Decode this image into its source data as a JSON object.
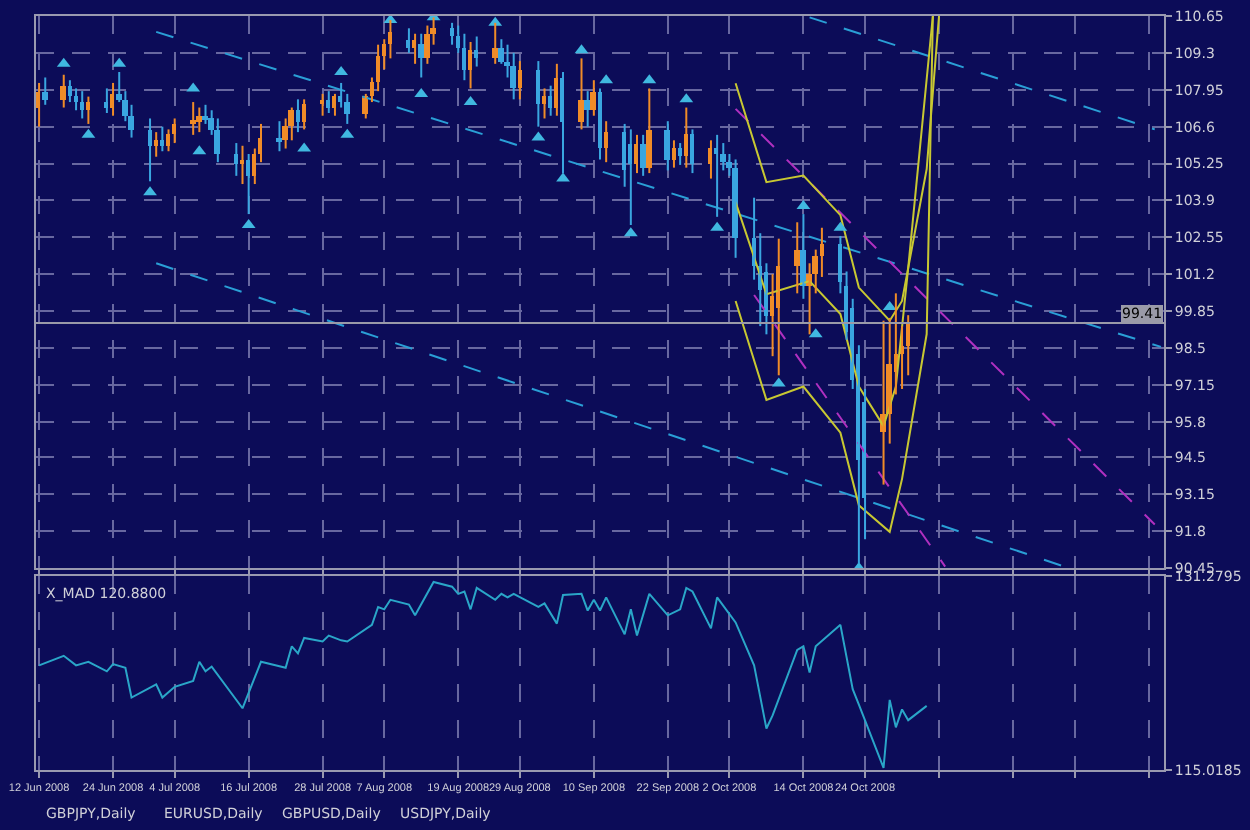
{
  "chart_data": [
    {
      "type": "candlestick",
      "x": [
        "2008-06-12",
        "2008-06-13",
        "2008-06-16",
        "2008-06-17",
        "2008-06-18",
        "2008-06-19",
        "2008-06-20",
        "2008-06-23",
        "2008-06-24",
        "2008-06-25",
        "2008-06-26",
        "2008-06-27",
        "2008-06-30",
        "2008-07-01",
        "2008-07-02",
        "2008-07-03",
        "2008-07-04",
        "2008-07-07",
        "2008-07-08",
        "2008-07-09",
        "2008-07-10",
        "2008-07-11",
        "2008-07-14",
        "2008-07-15",
        "2008-07-16",
        "2008-07-17",
        "2008-07-18",
        "2008-07-21",
        "2008-07-22",
        "2008-07-23",
        "2008-07-24",
        "2008-07-25",
        "2008-07-28",
        "2008-07-29",
        "2008-07-30",
        "2008-07-31",
        "2008-08-01",
        "2008-08-04",
        "2008-08-05",
        "2008-08-06",
        "2008-08-07",
        "2008-08-08",
        "2008-08-11",
        "2008-08-12",
        "2008-08-13",
        "2008-08-14",
        "2008-08-15",
        "2008-08-18",
        "2008-08-19",
        "2008-08-20",
        "2008-08-21",
        "2008-08-22",
        "2008-08-25",
        "2008-08-26",
        "2008-08-27",
        "2008-08-28",
        "2008-08-29",
        "2008-09-01",
        "2008-09-02",
        "2008-09-03",
        "2008-09-04",
        "2008-09-05",
        "2008-09-08",
        "2008-09-09",
        "2008-09-10",
        "2008-09-11",
        "2008-09-12",
        "2008-09-15",
        "2008-09-16",
        "2008-09-17",
        "2008-09-18",
        "2008-09-19",
        "2008-09-22",
        "2008-09-23",
        "2008-09-24",
        "2008-09-25",
        "2008-09-26",
        "2008-09-29",
        "2008-09-30",
        "2008-10-01",
        "2008-10-02",
        "2008-10-03",
        "2008-10-06",
        "2008-10-07",
        "2008-10-08",
        "2008-10-09",
        "2008-10-10",
        "2008-10-13",
        "2008-10-14",
        "2008-10-15",
        "2008-10-16",
        "2008-10-17",
        "2008-10-20",
        "2008-10-21",
        "2008-10-22",
        "2008-10-23",
        "2008-10-24",
        "2008-10-27",
        "2008-10-28",
        "2008-10-29",
        "2008-10-30",
        "2008-10-31"
      ],
      "ohlc": [
        [
          107.3,
          108.2,
          106.6,
          107.9
        ],
        [
          107.9,
          108.4,
          107.4,
          107.6
        ],
        [
          107.6,
          108.5,
          107.3,
          108.1
        ],
        [
          108.1,
          108.3,
          107.5,
          107.7
        ],
        [
          107.7,
          108.0,
          107.2,
          107.5
        ],
        [
          107.5,
          107.9,
          106.9,
          107.2
        ],
        [
          107.2,
          107.7,
          106.7,
          107.5
        ],
        [
          107.5,
          108.0,
          107.1,
          107.3
        ],
        [
          107.3,
          108.2,
          107.0,
          107.8
        ],
        [
          107.8,
          108.6,
          107.5,
          107.6
        ],
        [
          107.6,
          107.9,
          106.8,
          107.0
        ],
        [
          107.0,
          107.4,
          106.2,
          106.5
        ],
        [
          106.5,
          106.9,
          104.6,
          105.9
        ],
        [
          105.9,
          106.4,
          105.5,
          106.1
        ],
        [
          106.1,
          106.6,
          105.7,
          105.9
        ],
        [
          105.9,
          106.5,
          105.7,
          106.3
        ],
        [
          106.3,
          106.9,
          106.0,
          106.7
        ],
        [
          106.7,
          107.5,
          106.3,
          106.8
        ],
        [
          106.8,
          107.3,
          106.4,
          107.0
        ],
        [
          107.0,
          107.4,
          106.7,
          106.9
        ],
        [
          106.9,
          107.2,
          106.3,
          106.5
        ],
        [
          106.5,
          106.9,
          105.3,
          105.6
        ],
        [
          105.6,
          106.0,
          104.8,
          105.2
        ],
        [
          105.2,
          105.9,
          104.5,
          105.4
        ],
        [
          105.4,
          105.6,
          103.4,
          104.8
        ],
        [
          104.8,
          105.8,
          104.5,
          105.6
        ],
        [
          105.6,
          106.7,
          105.3,
          106.2
        ],
        [
          106.2,
          106.8,
          105.7,
          106.1
        ],
        [
          106.1,
          106.9,
          105.8,
          106.6
        ],
        [
          106.6,
          107.3,
          106.1,
          107.2
        ],
        [
          107.2,
          107.6,
          106.4,
          106.8
        ],
        [
          106.8,
          107.6,
          106.5,
          107.4
        ],
        [
          107.4,
          107.8,
          107.0,
          107.6
        ],
        [
          107.6,
          107.9,
          107.1,
          107.3
        ],
        [
          107.3,
          107.8,
          107.0,
          107.7
        ],
        [
          107.7,
          108.2,
          107.3,
          107.5
        ],
        [
          107.5,
          107.8,
          106.7,
          107.1
        ],
        [
          107.1,
          107.8,
          106.9,
          107.7
        ],
        [
          107.7,
          108.4,
          107.5,
          108.2
        ],
        [
          108.2,
          109.6,
          107.9,
          109.2
        ],
        [
          109.2,
          109.8,
          108.7,
          109.6
        ],
        [
          109.6,
          110.5,
          109.1,
          110.1
        ],
        [
          109.8,
          110.2,
          109.3,
          109.5
        ],
        [
          109.5,
          110.0,
          108.9,
          109.8
        ],
        [
          109.6,
          110.0,
          108.4,
          109.1
        ],
        [
          109.1,
          110.3,
          108.9,
          110.0
        ],
        [
          110.0,
          110.6,
          109.6,
          110.2
        ],
        [
          110.2,
          110.4,
          109.6,
          109.9
        ],
        [
          109.9,
          110.3,
          109.3,
          109.5
        ],
        [
          109.5,
          110.0,
          108.3,
          108.7
        ],
        [
          108.7,
          109.7,
          108.0,
          109.4
        ],
        [
          109.4,
          109.9,
          108.8,
          109.1
        ],
        [
          109.1,
          110.4,
          108.9,
          109.5
        ],
        [
          109.5,
          109.8,
          108.9,
          109.0
        ],
        [
          109.0,
          109.6,
          108.4,
          108.8
        ],
        [
          108.8,
          109.3,
          107.6,
          108.0
        ],
        [
          108.0,
          109.0,
          107.6,
          108.7
        ],
        [
          108.7,
          109.0,
          106.6,
          107.4
        ],
        [
          107.4,
          108.0,
          106.9,
          107.7
        ],
        [
          107.7,
          108.1,
          107.0,
          107.3
        ],
        [
          107.3,
          108.9,
          107.0,
          108.4
        ],
        [
          108.4,
          108.6,
          104.9,
          106.8
        ],
        [
          106.8,
          109.1,
          106.5,
          107.6
        ],
        [
          107.6,
          107.9,
          106.6,
          107.2
        ],
        [
          107.2,
          108.3,
          107.0,
          107.9
        ],
        [
          107.9,
          108.0,
          105.4,
          105.8
        ],
        [
          105.8,
          106.8,
          105.3,
          106.4
        ],
        [
          106.4,
          106.7,
          104.4,
          105.0
        ],
        [
          106.0,
          106.5,
          103.0,
          105.2
        ],
        [
          105.2,
          106.3,
          104.9,
          106.0
        ],
        [
          106.0,
          106.3,
          104.8,
          105.1
        ],
        [
          105.1,
          108.0,
          104.9,
          106.5
        ],
        [
          106.5,
          106.8,
          105.0,
          105.4
        ],
        [
          105.4,
          106.1,
          105.1,
          105.8
        ],
        [
          105.8,
          106.0,
          105.2,
          105.5
        ],
        [
          105.5,
          107.3,
          105.1,
          106.3
        ],
        [
          106.3,
          106.5,
          104.9,
          105.2
        ],
        [
          105.2,
          106.1,
          104.7,
          105.8
        ],
        [
          105.8,
          106.3,
          103.3,
          105.6
        ],
        [
          105.6,
          106.0,
          105.0,
          105.3
        ],
        [
          105.3,
          105.6,
          104.8,
          105.1
        ],
        [
          105.1,
          105.4,
          101.8,
          102.5
        ],
        [
          102.5,
          104.0,
          101.0,
          101.5
        ],
        [
          101.5,
          102.7,
          99.3,
          100.6
        ],
        [
          101.3,
          101.6,
          99.0,
          99.7
        ],
        [
          99.7,
          101.2,
          98.2,
          100.4
        ],
        [
          100.0,
          102.5,
          97.5,
          101.5
        ],
        [
          101.5,
          103.1,
          100.5,
          102.1
        ],
        [
          102.1,
          103.4,
          100.3,
          100.8
        ],
        [
          100.8,
          101.6,
          99.0,
          101.2
        ],
        [
          101.2,
          102.1,
          100.5,
          101.9
        ],
        [
          101.9,
          102.9,
          101.1,
          102.3
        ],
        [
          102.3,
          102.6,
          100.5,
          100.9
        ],
        [
          100.8,
          101.3,
          98.8,
          99.1
        ],
        [
          100.0,
          100.3,
          97.0,
          97.3
        ],
        [
          98.3,
          98.6,
          90.6,
          94.4
        ],
        [
          96.5,
          97.0,
          91.5,
          93.0
        ],
        [
          95.4,
          99.5,
          93.5,
          96.1
        ],
        [
          96.1,
          99.6,
          95.0,
          97.9
        ],
        [
          97.6,
          100.5,
          96.8,
          98.3
        ],
        [
          98.3,
          99.3,
          97.0,
          98.6
        ],
        [
          98.6,
          99.7,
          97.5,
          99.4
        ]
      ],
      "colors": [
        "#f08c28",
        "#3aa6e0",
        "#f08c28",
        "#3aa6e0",
        "#3aa6e0",
        "#3aa6e0",
        "#f08c28",
        "#3aa6e0",
        "#f08c28",
        "#3aa6e0",
        "#3aa6e0",
        "#3aa6e0",
        "#3aa6e0",
        "#f08c28",
        "#3aa6e0",
        "#f08c28",
        "#f08c28",
        "#f08c28",
        "#f08c28",
        "#3aa6e0",
        "#3aa6e0",
        "#3aa6e0",
        "#3aa6e0",
        "#f08c28",
        "#3aa6e0",
        "#f08c28",
        "#f08c28",
        "#3aa6e0",
        "#f08c28",
        "#f08c28",
        "#3aa6e0",
        "#f08c28",
        "#f08c28",
        "#3aa6e0",
        "#f08c28",
        "#3aa6e0",
        "#3aa6e0",
        "#f08c28",
        "#f08c28",
        "#f08c28",
        "#f08c28",
        "#f08c28",
        "#3aa6e0",
        "#f08c28",
        "#3aa6e0",
        "#f08c28",
        "#f08c28",
        "#3aa6e0",
        "#3aa6e0",
        "#3aa6e0",
        "#f08c28",
        "#3aa6e0",
        "#f08c28",
        "#3aa6e0",
        "#3aa6e0",
        "#3aa6e0",
        "#f08c28",
        "#3aa6e0",
        "#f08c28",
        "#3aa6e0",
        "#f08c28",
        "#3aa6e0",
        "#f08c28",
        "#3aa6e0",
        "#f08c28",
        "#3aa6e0",
        "#f08c28",
        "#3aa6e0",
        "#3aa6e0",
        "#f08c28",
        "#3aa6e0",
        "#f08c28",
        "#3aa6e0",
        "#f08c28",
        "#3aa6e0",
        "#f08c28",
        "#3aa6e0",
        "#f08c28",
        "#3aa6e0",
        "#3aa6e0",
        "#3aa6e0",
        "#3aa6e0",
        "#3aa6e0",
        "#3aa6e0",
        "#3aa6e0",
        "#f08c28",
        "#f08c28",
        "#f08c28",
        "#3aa6e0",
        "#f08c28",
        "#f08c28",
        "#f08c28",
        "#3aa6e0",
        "#3aa6e0",
        "#3aa6e0",
        "#3aa6e0",
        "#3aa6e0",
        "#f08c28",
        "#f08c28",
        "#f08c28",
        "#f08c28",
        "#f08c28"
      ],
      "series": [
        {
          "type": "line",
          "color": "#2a9fd6",
          "line_style": "dashed",
          "x": [
            "2008-10-15",
            "2008-12-10"
          ],
          "values": [
            110.6,
            106.5
          ]
        },
        {
          "type": "line",
          "color": "#2a9fd6",
          "line_style": "dashed",
          "x": [
            "2008-07-01",
            "2008-12-11"
          ],
          "values": [
            110.07,
            98.54
          ]
        },
        {
          "type": "line",
          "color": "#2a9fd6",
          "line_style": "dashed",
          "x": [
            "2008-07-01",
            "2008-11-26"
          ],
          "values": [
            101.6,
            90.45
          ]
        },
        {
          "type": "line",
          "color": "#b030c0",
          "line_style": "dashed",
          "x": [
            "2008-10-03",
            "2008-12-10"
          ],
          "values": [
            107.25,
            92.04
          ]
        },
        {
          "type": "line",
          "color": "#b030c0",
          "line_style": "dashed",
          "x": [
            "2008-10-06",
            "2008-11-06"
          ],
          "values": [
            100.44,
            90.5
          ]
        },
        {
          "type": "line",
          "color": "#c8c832",
          "line_style": "solid",
          "x": [
            "2008-10-03",
            "2008-10-08",
            "2008-10-14",
            "2008-10-20",
            "2008-10-23",
            "2008-10-28",
            "2008-10-30",
            "2008-11-03",
            "2008-11-05"
          ],
          "values": [
            108.19,
            104.57,
            104.81,
            103.36,
            100.71,
            99.5,
            100.22,
            105.05,
            110.65
          ]
        },
        {
          "type": "line",
          "color": "#c8c832",
          "line_style": "solid",
          "x": [
            "2008-10-03",
            "2008-10-08",
            "2008-10-15",
            "2008-10-20",
            "2008-10-23",
            "2008-10-27",
            "2008-10-29",
            "2008-10-31",
            "2008-11-04"
          ],
          "values": [
            103.84,
            100.47,
            100.95,
            99.74,
            97.09,
            95.64,
            97.09,
            101.43,
            110.65
          ]
        },
        {
          "type": "line",
          "color": "#c8c832",
          "line_style": "solid",
          "x": [
            "2008-10-03",
            "2008-10-08",
            "2008-10-14",
            "2008-10-20",
            "2008-10-23",
            "2008-10-28",
            "2008-10-30",
            "2008-11-03",
            "2008-11-04"
          ],
          "values": [
            100.22,
            96.6,
            97.09,
            95.4,
            92.74,
            91.77,
            93.71,
            99.01,
            110.65
          ]
        },
        {
          "type": "scatter",
          "color": "#40b8e0",
          "marker": "triangle",
          "x": [
            "2008-06-16",
            "2008-06-25",
            "2008-07-07",
            "2008-07-31",
            "2008-08-08",
            "2008-08-15",
            "2008-08-25",
            "2008-09-08",
            "2008-09-12",
            "2008-09-19",
            "2008-09-25",
            "2008-10-14",
            "2008-10-20",
            "2008-10-28"
          ],
          "values": [
            108.9,
            108.9,
            108.0,
            108.6,
            110.5,
            110.6,
            110.4,
            109.4,
            108.3,
            108.3,
            107.6,
            103.7,
            102.9,
            100.0
          ]
        },
        {
          "type": "scatter",
          "color": "#40b8e0",
          "marker": "triangle",
          "x": [
            "2008-06-20",
            "2008-06-30",
            "2008-07-08",
            "2008-07-16",
            "2008-07-25",
            "2008-08-01",
            "2008-08-13",
            "2008-08-21",
            "2008-09-01",
            "2008-09-05",
            "2008-09-16",
            "2008-09-30",
            "2008-10-10",
            "2008-10-16",
            "2008-10-23"
          ],
          "values": [
            106.3,
            104.2,
            105.7,
            103.0,
            105.8,
            106.3,
            107.8,
            107.5,
            106.2,
            104.7,
            102.7,
            102.9,
            97.2,
            99.0,
            90.45
          ]
        }
      ],
      "ylim": [
        90.45,
        110.65
      ],
      "yticks": [
        110.65,
        109.3,
        107.95,
        106.6,
        105.25,
        103.9,
        102.55,
        101.2,
        99.85,
        98.5,
        97.15,
        95.8,
        94.5,
        93.15,
        91.8,
        90.45
      ],
      "xlim": [
        "2008-06-11T12:00",
        "2008-12-11T12:00"
      ],
      "xticks": [
        {
          "value": "2008-06-12",
          "label": null
        },
        {
          "value": "2008-06-24",
          "label": null
        },
        {
          "value": "2008-07-04",
          "label": null
        },
        {
          "value": "2008-07-16",
          "label": null
        },
        {
          "value": "2008-07-28",
          "label": null
        },
        {
          "value": "2008-08-07",
          "label": null
        },
        {
          "value": "2008-08-19",
          "label": null
        },
        {
          "value": "2008-08-29",
          "label": null
        },
        {
          "value": "2008-09-10",
          "label": null
        },
        {
          "value": "2008-09-22",
          "label": null
        },
        {
          "value": "2008-10-02",
          "label": null
        },
        {
          "value": "2008-10-14",
          "label": null
        },
        {
          "value": "2008-10-24",
          "label": null
        },
        {
          "value": "2008-11-05",
          "label": null
        },
        {
          "value": "2008-11-17",
          "label": null
        },
        {
          "value": "2008-11-27",
          "label": null
        },
        {
          "value": "2008-12-09",
          "label": null
        }
      ],
      "ref_lines": [
        {
          "axis": "y",
          "value": 99.41,
          "label": "99.41",
          "color": "#9a9aa8"
        }
      ],
      "tick_labels": "y",
      "grid": true,
      "legend": false
    },
    {
      "type": "line",
      "title": "X_MAD 120.8800",
      "color": "#2aa6c8",
      "x": [
        "2008-06-12",
        "2008-06-16",
        "2008-06-18",
        "2008-06-20",
        "2008-06-23",
        "2008-06-24",
        "2008-06-26",
        "2008-06-27",
        "2008-07-01",
        "2008-07-02",
        "2008-07-04",
        "2008-07-07",
        "2008-07-08",
        "2008-07-09",
        "2008-07-10",
        "2008-07-15",
        "2008-07-18",
        "2008-07-22",
        "2008-07-23",
        "2008-07-24",
        "2008-07-25",
        "2008-07-28",
        "2008-07-29",
        "2008-07-31",
        "2008-08-01",
        "2008-08-05",
        "2008-08-06",
        "2008-08-07",
        "2008-08-08",
        "2008-08-11",
        "2008-08-12",
        "2008-08-15",
        "2008-08-18",
        "2008-08-19",
        "2008-08-20",
        "2008-08-21",
        "2008-08-22",
        "2008-08-25",
        "2008-08-26",
        "2008-08-27",
        "2008-08-28",
        "2008-09-01",
        "2008-09-02",
        "2008-09-04",
        "2008-09-05",
        "2008-09-08",
        "2008-09-09",
        "2008-09-10",
        "2008-09-11",
        "2008-09-12",
        "2008-09-15",
        "2008-09-16",
        "2008-09-17",
        "2008-09-19",
        "2008-09-22",
        "2008-09-24",
        "2008-09-25",
        "2008-09-26",
        "2008-09-29",
        "2008-09-30",
        "2008-10-03",
        "2008-10-06",
        "2008-10-08",
        "2008-10-09",
        "2008-10-13",
        "2008-10-14",
        "2008-10-15",
        "2008-10-16",
        "2008-10-20",
        "2008-10-22",
        "2008-10-23",
        "2008-10-27",
        "2008-10-28",
        "2008-10-29",
        "2008-10-30",
        "2008-10-31",
        "2008-11-03"
      ],
      "values": [
        123.8,
        124.6,
        123.8,
        124.1,
        123.3,
        123.9,
        123.6,
        121.1,
        122.2,
        121.1,
        122.0,
        122.5,
        124.1,
        123.3,
        123.7,
        120.2,
        124.1,
        123.6,
        125.4,
        124.8,
        126.1,
        125.8,
        126.3,
        125.9,
        125.8,
        127.2,
        128.7,
        128.5,
        129.3,
        128.9,
        128.0,
        130.8,
        130.4,
        129.8,
        130.0,
        128.5,
        130.3,
        129.3,
        129.8,
        129.5,
        129.8,
        128.7,
        129.0,
        127.3,
        129.7,
        129.8,
        128.4,
        129.3,
        128.4,
        129.5,
        126.4,
        128.5,
        126.3,
        129.8,
        128.0,
        128.5,
        130.3,
        130.0,
        126.9,
        129.5,
        127.4,
        123.8,
        118.5,
        119.6,
        125.1,
        125.4,
        123.2,
        125.4,
        127.2,
        121.8,
        120.5,
        115.2,
        120.9,
        118.6,
        120.1,
        119.2,
        120.4
      ],
      "ylim": [
        115.0185,
        131.2795
      ],
      "yticks": [
        131.2795,
        115.0185
      ],
      "xlim": [
        "2008-06-11T12:00",
        "2008-12-11T12:00"
      ],
      "xticks": [
        {
          "value": "2008-06-12",
          "label": "12 Jun 2008"
        },
        {
          "value": "2008-06-24",
          "label": "24 Jun 2008"
        },
        {
          "value": "2008-07-04",
          "label": "4 Jul 2008"
        },
        {
          "value": "2008-07-16",
          "label": "16 Jul 2008"
        },
        {
          "value": "2008-07-28",
          "label": "28 Jul 2008"
        },
        {
          "value": "2008-08-07",
          "label": "7 Aug 2008"
        },
        {
          "value": "2008-08-19",
          "label": "19 Aug 2008"
        },
        {
          "value": "2008-08-29",
          "label": "29 Aug 2008"
        },
        {
          "value": "2008-09-10",
          "label": "10 Sep 2008"
        },
        {
          "value": "2008-09-22",
          "label": "22 Sep 2008"
        },
        {
          "value": "2008-10-02",
          "label": "2 Oct 2008"
        },
        {
          "value": "2008-10-14",
          "label": "14 Oct 2008"
        },
        {
          "value": "2008-10-24",
          "label": "24 Oct 2008"
        },
        {
          "value": "2008-11-05",
          "label": null
        },
        {
          "value": "2008-11-17",
          "label": null
        },
        {
          "value": "2008-11-27",
          "label": null
        },
        {
          "value": "2008-12-09",
          "label": null
        }
      ],
      "annotations": [
        "GBPJPY,Daily",
        "EURUSD,Daily",
        "GBPUSD,Daily",
        "USDJPY,Daily"
      ],
      "grid": true,
      "legend": false
    }
  ]
}
